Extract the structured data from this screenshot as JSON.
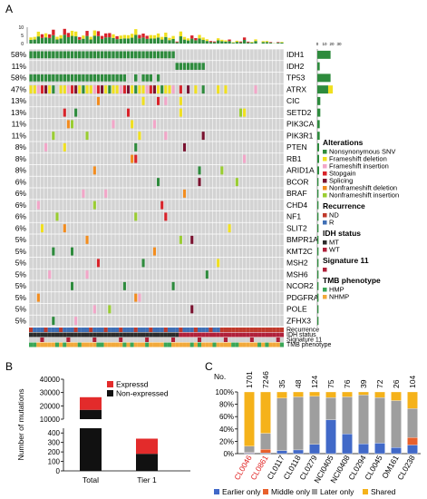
{
  "panel_labels": {
    "a": "A",
    "b": "B",
    "c": "C"
  },
  "colors": {
    "nonsyn": "#2e8b3d",
    "fs_del": "#f0e020",
    "fs_ins": "#f2a6c8",
    "stopgain": "#d8232a",
    "splicing": "#7a1230",
    "nf_del": "#f28c1e",
    "nf_ins": "#9acd32",
    "nd": "#c0392b",
    "r": "#3f6fb5",
    "mt": "#2b2b2b",
    "wt": "#b0203a",
    "sig11": "#b0203a",
    "hmp": "#3aa657",
    "nhmp": "#f2a93b",
    "grid_bg": "#d3d3d3",
    "expressed": "#e32b2b",
    "nonexpressed": "#111111",
    "earlier": "#4169c8",
    "middle": "#e8602c",
    "later": "#9e9e9e",
    "shared": "#f5b21a"
  },
  "chart_data": [
    {
      "type": "heatmap",
      "title": "",
      "ncols": 68,
      "top_bar_ticks": [
        "0",
        "5",
        "10"
      ],
      "right_bar_ticks": [
        "0",
        "10",
        "20",
        "30"
      ],
      "genes": [
        {
          "name": "IDH1",
          "pct": "58%"
        },
        {
          "name": "IDH2",
          "pct": "11%"
        },
        {
          "name": "TP53",
          "pct": "58%"
        },
        {
          "name": "ATRX",
          "pct": "47%"
        },
        {
          "name": "CIC",
          "pct": "13%"
        },
        {
          "name": "SETD2",
          "pct": "13%"
        },
        {
          "name": "PIK3CA",
          "pct": "11%"
        },
        {
          "name": "PIK3R1",
          "pct": "11%"
        },
        {
          "name": "PTEN",
          "pct": "8%"
        },
        {
          "name": "RB1",
          "pct": "8%"
        },
        {
          "name": "ARID1A",
          "pct": "8%"
        },
        {
          "name": "BCOR",
          "pct": "6%"
        },
        {
          "name": "BRAF",
          "pct": "6%"
        },
        {
          "name": "CHD4",
          "pct": "6%"
        },
        {
          "name": "NF1",
          "pct": "6%"
        },
        {
          "name": "SLIT2",
          "pct": "6%"
        },
        {
          "name": "BMPR1A",
          "pct": "5%"
        },
        {
          "name": "KMT2C",
          "pct": "5%"
        },
        {
          "name": "MSH2",
          "pct": "5%"
        },
        {
          "name": "MSH6",
          "pct": "5%"
        },
        {
          "name": "NCOR2",
          "pct": "5%"
        },
        {
          "name": "PDGFRA",
          "pct": "5%"
        },
        {
          "name": "POLE",
          "pct": "5%"
        },
        {
          "name": "ZFHX3",
          "pct": "5%"
        }
      ],
      "gene_totals": [
        22,
        4,
        22,
        18,
        5,
        5,
        4,
        4,
        3,
        3,
        3,
        2,
        2,
        2,
        2,
        2,
        2,
        2,
        2,
        2,
        2,
        2,
        2,
        2
      ],
      "annotation_tracks": [
        "Recurrence",
        "IDH status",
        "Signature 11",
        "TMB phenotype"
      ],
      "legend": {
        "groups": [
          {
            "title": "Alterations",
            "items": [
              {
                "label": "Nonsynonymous SNV",
                "color": "#2e8b3d"
              },
              {
                "label": "Frameshift deletion",
                "color": "#f0e020"
              },
              {
                "label": "Frameshift insertion",
                "color": "#f2a6c8"
              },
              {
                "label": "Stopgain",
                "color": "#d8232a"
              },
              {
                "label": "Splicing",
                "color": "#7a1230"
              },
              {
                "label": "Nonframeshift deletion",
                "color": "#f28c1e"
              },
              {
                "label": "Nonframeshift insertion",
                "color": "#9acd32"
              }
            ]
          },
          {
            "title": "Recurrence",
            "items": [
              {
                "label": "ND",
                "color": "#c0392b"
              },
              {
                "label": "R",
                "color": "#3f6fb5"
              }
            ]
          },
          {
            "title": "IDH status",
            "items": [
              {
                "label": "MT",
                "color": "#2b2b2b"
              },
              {
                "label": "WT",
                "color": "#b0203a"
              }
            ]
          },
          {
            "title": "Signature 11",
            "items": [
              {
                "label": "",
                "color": "#b0203a"
              }
            ]
          },
          {
            "title": "TMB phenotype",
            "items": [
              {
                "label": "HMP",
                "color": "#3aa657"
              },
              {
                "label": "NHMP",
                "color": "#f2a93b"
              }
            ]
          }
        ]
      }
    },
    {
      "type": "bar",
      "title": "",
      "ylabel": "Number of mutations",
      "categories": [
        "Total",
        "Tier 1"
      ],
      "series": [
        {
          "name": "Non-expressed",
          "values": [
            17000,
            180
          ]
        },
        {
          "name": "Expressd",
          "values": [
            9500,
            160
          ]
        }
      ],
      "broken_axis": {
        "upper": {
          "ylim": [
            10000,
            40000
          ],
          "ticks": [
            "10000",
            "20000",
            "30000",
            "40000"
          ]
        },
        "lower": {
          "ylim": [
            0,
            450
          ],
          "ticks": [
            "0",
            "100",
            "200",
            "300",
            "400"
          ]
        }
      },
      "legend": [
        "Expressd",
        "Non-expressed"
      ]
    },
    {
      "type": "bar",
      "title": "",
      "stacked_percent": true,
      "count_prefix": "No.",
      "categories": [
        {
          "name": "CL0046",
          "n": "1701",
          "highlight": true
        },
        {
          "name": "CL0861",
          "n": "7246",
          "highlight": true
        },
        {
          "name": "CL0117",
          "n": "35",
          "highlight": false
        },
        {
          "name": "CL0118",
          "n": "48",
          "highlight": false
        },
        {
          "name": "CL0279",
          "n": "124",
          "highlight": false
        },
        {
          "name": "NCI0405",
          "n": "75",
          "highlight": false
        },
        {
          "name": "NCI0408",
          "n": "76",
          "highlight": false
        },
        {
          "name": "CL0294",
          "n": "39",
          "highlight": false
        },
        {
          "name": "CL0045",
          "n": "72",
          "highlight": false
        },
        {
          "name": "OM161",
          "n": "26",
          "highlight": false
        },
        {
          "name": "CL0238",
          "n": "104",
          "highlight": false
        }
      ],
      "yticks": [
        "0%",
        "20%",
        "40%",
        "60%",
        "80%",
        "100%"
      ],
      "series": [
        {
          "name": "Earlier only",
          "values": [
            1,
            1,
            5,
            6,
            15,
            55,
            32,
            16,
            17,
            10,
            14
          ]
        },
        {
          "name": "Middle only",
          "values": [
            1,
            6,
            0,
            0,
            0,
            0,
            0,
            0,
            0,
            0,
            12
          ]
        },
        {
          "name": "Later only",
          "values": [
            10,
            26,
            85,
            86,
            78,
            36,
            60,
            79,
            74,
            76,
            47
          ]
        },
        {
          "name": "Shared",
          "values": [
            88,
            67,
            10,
            8,
            7,
            9,
            8,
            5,
            9,
            14,
            27
          ]
        }
      ]
    }
  ]
}
